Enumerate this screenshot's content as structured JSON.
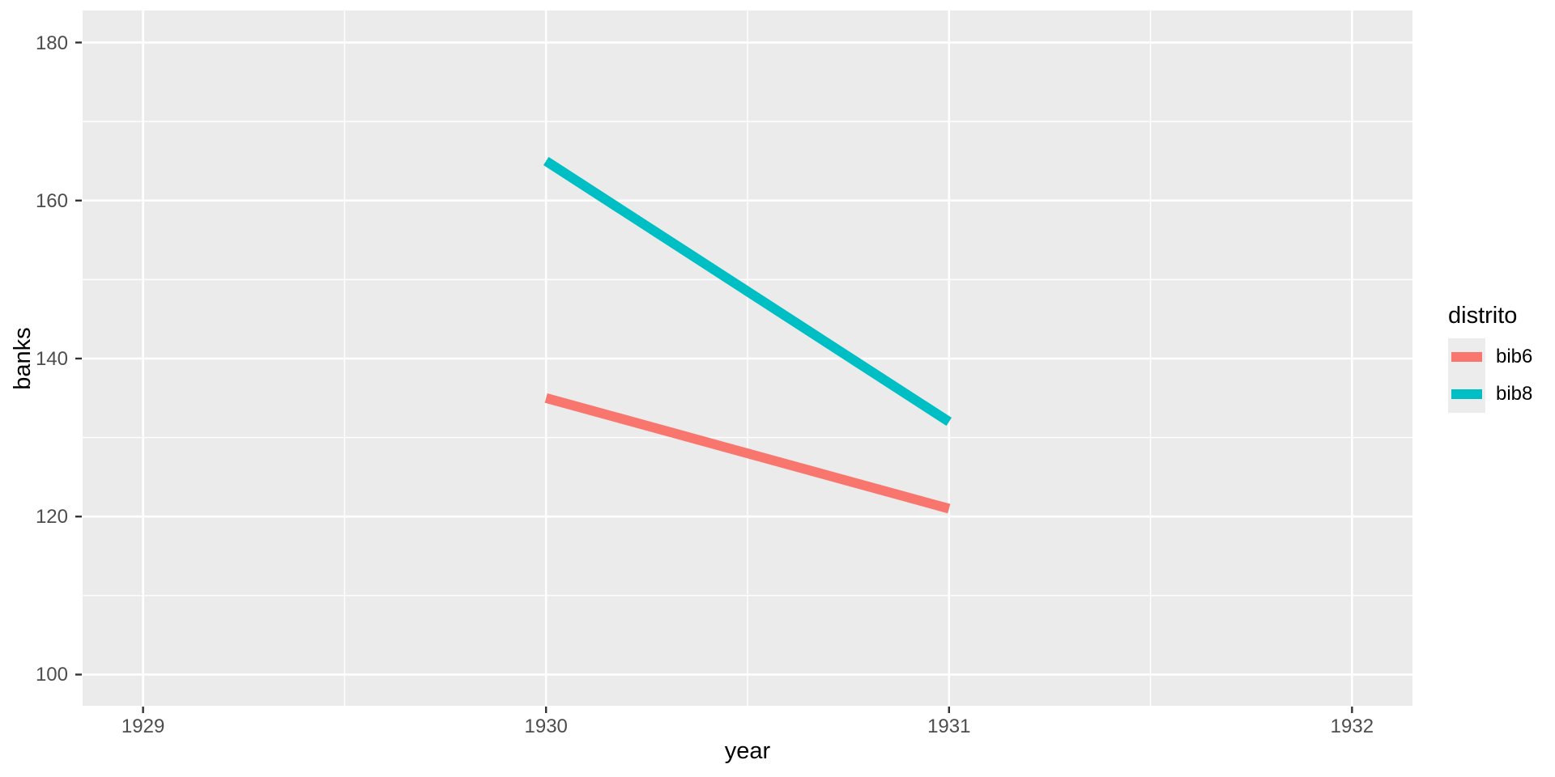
{
  "chart_data": {
    "type": "line",
    "title": "",
    "xlabel": "year",
    "ylabel": "banks",
    "x": [
      1930,
      1931
    ],
    "series": [
      {
        "name": "bib6",
        "color": "#F8766D",
        "values": [
          135,
          121
        ]
      },
      {
        "name": "bib8",
        "color": "#00BFC4",
        "values": [
          165,
          132
        ]
      }
    ],
    "x_tick_labels": [
      "1929",
      "1930",
      "1931",
      "1932"
    ],
    "x_tick_values": [
      1929,
      1930,
      1931,
      1932
    ],
    "x_minor_gridlines": [
      1929.5,
      1930.5,
      1931.5
    ],
    "y_tick_labels": [
      "100",
      "120",
      "140",
      "160",
      "180"
    ],
    "y_tick_values": [
      100,
      120,
      140,
      160,
      180
    ],
    "y_minor_gridlines": [
      110,
      130,
      150,
      170
    ],
    "xlim": [
      1928.85,
      1932.15
    ],
    "ylim": [
      96.05,
      184.05
    ],
    "grid": true,
    "legend": {
      "title": "distrito",
      "position": "right",
      "items": [
        "bib6",
        "bib8"
      ]
    },
    "colors": {
      "panel_bg": "#EBEBEB",
      "gridline": "#FFFFFF",
      "tick_text": "#4D4D4D",
      "tick_mark": "#333333",
      "axis_title_text": "#000000",
      "legend_key_bg": "#ECECEC",
      "page_bg": "#FFFFFF"
    }
  }
}
